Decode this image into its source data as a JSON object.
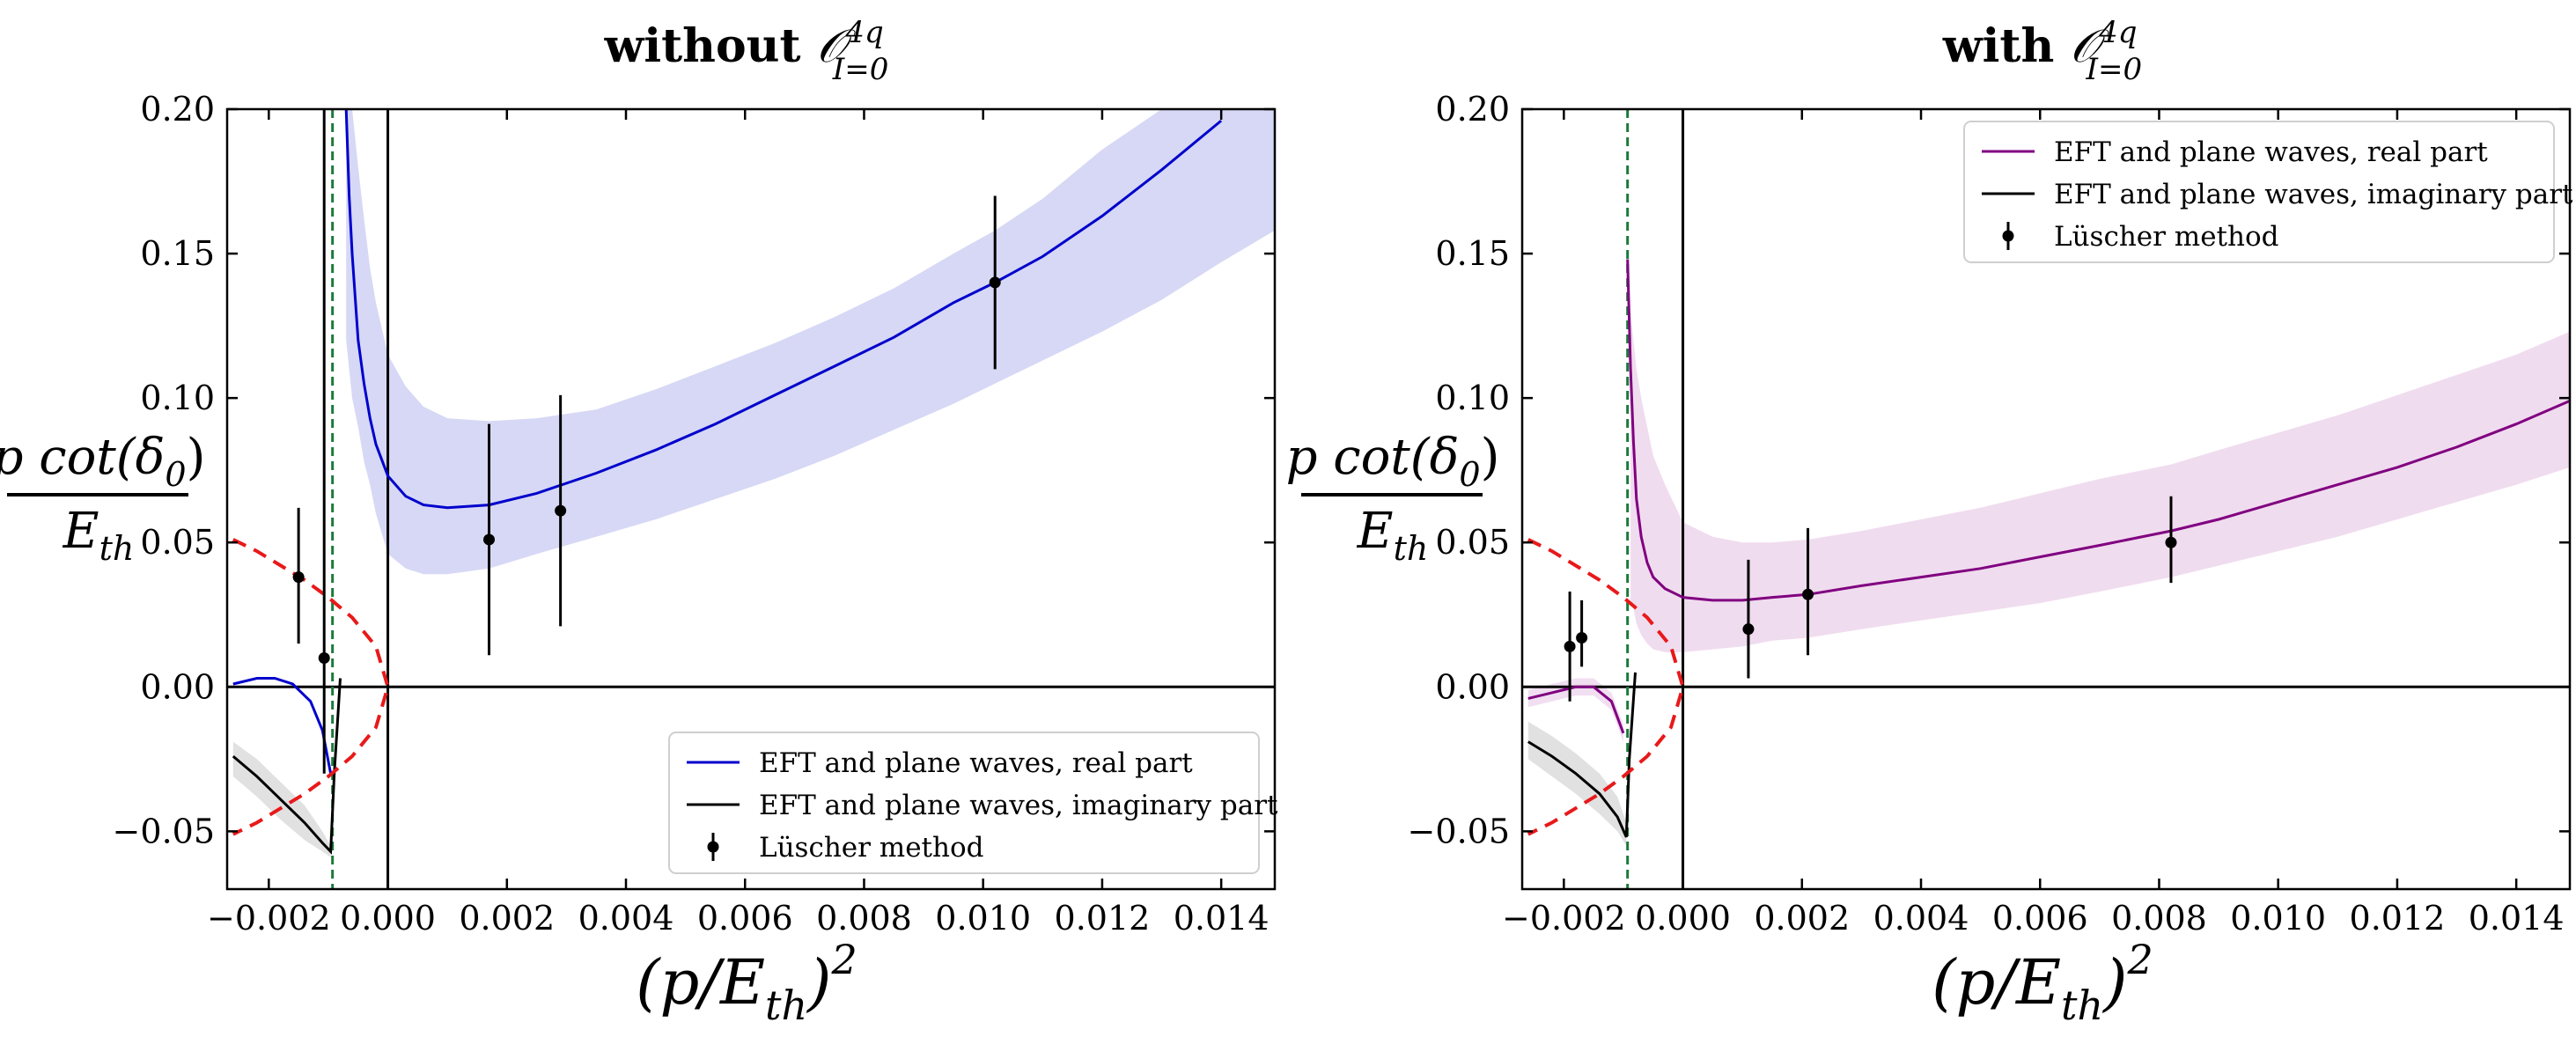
{
  "figure": {
    "ylabel_num": "p cot(δ",
    "ylabel_num_sub": "0",
    "ylabel_num_close": ")",
    "ylabel_den": "E",
    "ylabel_den_sub": "th",
    "xlabel_open": "(p/E",
    "xlabel_sub": "th",
    "xlabel_close": ")",
    "xlabel_sup": "2"
  },
  "chart_data": [
    {
      "type": "line",
      "title_prefix": "without",
      "title_symbol": "𝒪",
      "title_sup": "4q",
      "title_sub": "I=0",
      "xlabel": "(p/E_th)^2",
      "ylabel": "p cot(δ_0) / E_th",
      "xlim": [
        -0.0027,
        0.0149
      ],
      "ylim": [
        -0.07,
        0.2
      ],
      "xticks": [
        "−0.002",
        "0.000",
        "0.002",
        "0.004",
        "0.006",
        "0.008",
        "0.010",
        "0.012",
        "0.014"
      ],
      "xtick_values": [
        -0.002,
        0.0,
        0.002,
        0.004,
        0.006,
        0.008,
        0.01,
        0.012,
        0.014
      ],
      "yticks": [
        "−0.05",
        "0.00",
        "0.05",
        "0.10",
        "0.15",
        "0.20"
      ],
      "ytick_values": [
        -0.05,
        0.0,
        0.05,
        0.1,
        0.15,
        0.2
      ],
      "accent_color": "#0000cc",
      "band_color": "#d6d8f5",
      "legend": {
        "position": "lower-right",
        "entries": [
          {
            "label": "EFT and plane waves, real part",
            "kind": "line",
            "color": "#0000cc"
          },
          {
            "label": "EFT and plane waves, imaginary part",
            "kind": "line",
            "color": "#000000"
          },
          {
            "label": "Lüscher method",
            "kind": "errorbar",
            "color": "#000000"
          }
        ]
      },
      "vlines": [
        {
          "x": 0.0,
          "color": "#000000",
          "dashed": false
        },
        {
          "x": -0.00093,
          "color": "#1b7a3a",
          "dashed": true
        }
      ],
      "series": [
        {
          "name": "EFT and plane waves, real part (left branch)",
          "color": "#0000cc",
          "x": [
            -0.0026,
            -0.0022,
            -0.0019,
            -0.0016,
            -0.0013,
            -0.0011,
            -0.00096
          ],
          "y": [
            0.001,
            0.003,
            0.003,
            0.001,
            -0.005,
            -0.015,
            -0.03
          ]
        },
        {
          "name": "EFT and plane waves, real part (right branch)",
          "color": "#0000cc",
          "x": [
            -0.0007,
            -0.00065,
            -0.0006,
            -0.00055,
            -0.0005,
            -0.0004,
            -0.0003,
            -0.0002,
            0.0,
            0.0003,
            0.0006,
            0.001,
            0.0017,
            0.0025,
            0.0035,
            0.0045,
            0.0055,
            0.0065,
            0.0075,
            0.0085,
            0.0095,
            0.0102,
            0.011,
            0.012,
            0.013,
            0.014
          ],
          "y": [
            0.2,
            0.17,
            0.15,
            0.135,
            0.12,
            0.105,
            0.093,
            0.084,
            0.073,
            0.066,
            0.063,
            0.062,
            0.063,
            0.067,
            0.074,
            0.082,
            0.091,
            0.101,
            0.111,
            0.121,
            0.133,
            0.14,
            0.149,
            0.163,
            0.179,
            0.196
          ]
        },
        {
          "name": "EFT and plane waves, imaginary part",
          "color": "#000000",
          "x": [
            -0.0026,
            -0.0022,
            -0.0018,
            -0.0014,
            -0.0011,
            -0.00096,
            -0.0009,
            -0.0008
          ],
          "y": [
            -0.024,
            -0.031,
            -0.039,
            -0.047,
            -0.054,
            -0.057,
            -0.03,
            0.003
          ]
        },
        {
          "name": "Threshold curve",
          "color": "#e8191a",
          "dashed": true,
          "x": [
            -0.0026,
            -0.0022,
            -0.0018,
            -0.0014,
            -0.001,
            -0.0006,
            -0.0002,
            0.0,
            -0.0002,
            -0.0006,
            -0.001,
            -0.0014,
            -0.0018,
            -0.0022,
            -0.0026
          ],
          "y": [
            0.051,
            0.047,
            0.042,
            0.037,
            0.031,
            0.024,
            0.014,
            0.0,
            -0.014,
            -0.024,
            -0.031,
            -0.037,
            -0.042,
            -0.047,
            -0.051
          ]
        }
      ],
      "bands": [
        {
          "x": [
            -0.0007,
            -0.0006,
            -0.0005,
            -0.0004,
            -0.0003,
            -0.0002,
            0.0,
            0.0003,
            0.0006,
            0.001,
            0.0017,
            0.0025,
            0.0035,
            0.0045,
            0.0055,
            0.0065,
            0.0075,
            0.0085,
            0.0095,
            0.0102,
            0.011,
            0.012,
            0.013,
            0.014,
            0.0149
          ],
          "lower": [
            0.12,
            0.1,
            0.09,
            0.078,
            0.07,
            0.06,
            0.046,
            0.041,
            0.039,
            0.039,
            0.041,
            0.046,
            0.052,
            0.058,
            0.065,
            0.072,
            0.08,
            0.089,
            0.098,
            0.105,
            0.113,
            0.123,
            0.134,
            0.147,
            0.158
          ],
          "upper": [
            0.2,
            0.2,
            0.18,
            0.162,
            0.145,
            0.133,
            0.115,
            0.104,
            0.097,
            0.093,
            0.092,
            0.093,
            0.096,
            0.103,
            0.111,
            0.119,
            0.128,
            0.138,
            0.15,
            0.158,
            0.169,
            0.186,
            0.2,
            0.2,
            0.2
          ]
        },
        {
          "x": [
            -0.0026,
            -0.0022,
            -0.0018,
            -0.0014,
            -0.0011,
            -0.00096
          ],
          "lower": [
            -0.031,
            -0.038,
            -0.046,
            -0.053,
            -0.057,
            -0.059
          ],
          "upper": [
            -0.019,
            -0.025,
            -0.033,
            -0.041,
            -0.05,
            -0.055
          ]
        }
      ],
      "points": [
        {
          "x": -0.0015,
          "y": 0.038,
          "ylow": 0.015,
          "yhigh": 0.062
        },
        {
          "x": -0.00107,
          "y": 0.01,
          "ylow": -0.03,
          "yhigh": 0.2
        },
        {
          "x": 0.0017,
          "y": 0.051,
          "ylow": 0.011,
          "yhigh": 0.091
        },
        {
          "x": 0.0029,
          "y": 0.061,
          "ylow": 0.021,
          "yhigh": 0.101
        },
        {
          "x": 0.0102,
          "y": 0.14,
          "ylow": 0.11,
          "yhigh": 0.17
        }
      ]
    },
    {
      "type": "line",
      "title_prefix": "with",
      "title_symbol": "𝒪",
      "title_sup": "4q",
      "title_sub": "I=0",
      "xlabel": "(p/E_th)^2",
      "ylabel": "p cot(δ_0) / E_th",
      "xlim": [
        -0.0027,
        0.0149
      ],
      "ylim": [
        -0.07,
        0.2
      ],
      "xticks": [
        "−0.002",
        "0.000",
        "0.002",
        "0.004",
        "0.006",
        "0.008",
        "0.010",
        "0.012",
        "0.014"
      ],
      "xtick_values": [
        -0.002,
        0.0,
        0.002,
        0.004,
        0.006,
        0.008,
        0.01,
        0.012,
        0.014
      ],
      "yticks": [
        "−0.05",
        "0.00",
        "0.05",
        "0.10",
        "0.15",
        "0.20"
      ],
      "ytick_values": [
        -0.05,
        0.0,
        0.05,
        0.1,
        0.15,
        0.2
      ],
      "accent_color": "#800080",
      "band_color": "#f0dcef",
      "legend": {
        "position": "upper-right",
        "entries": [
          {
            "label": "EFT and plane waves, real part",
            "kind": "line",
            "color": "#800080"
          },
          {
            "label": "EFT and plane waves, imaginary part",
            "kind": "line",
            "color": "#000000"
          },
          {
            "label": "Lüscher method",
            "kind": "errorbar",
            "color": "#000000"
          }
        ]
      },
      "vlines": [
        {
          "x": 0.0,
          "color": "#000000",
          "dashed": false
        },
        {
          "x": -0.00093,
          "color": "#1b7a3a",
          "dashed": true
        }
      ],
      "series": [
        {
          "name": "EFT and plane waves, real part (left branch)",
          "color": "#800080",
          "x": [
            -0.0026,
            -0.0022,
            -0.0018,
            -0.0015,
            -0.0012,
            -0.001
          ],
          "y": [
            -0.004,
            -0.002,
            0.0,
            0.0,
            -0.005,
            -0.016
          ]
        },
        {
          "name": "EFT and plane waves, real part (right branch)",
          "color": "#800080",
          "x": [
            -0.00093,
            -0.00088,
            -0.00083,
            -0.00078,
            -0.0007,
            -0.0006,
            -0.0005,
            -0.0003,
            0.0,
            0.0005,
            0.001,
            0.0015,
            0.0021,
            0.003,
            0.004,
            0.005,
            0.006,
            0.007,
            0.0082,
            0.009,
            0.01,
            0.011,
            0.012,
            0.013,
            0.014,
            0.0149
          ],
          "y": [
            0.148,
            0.11,
            0.085,
            0.065,
            0.052,
            0.043,
            0.038,
            0.034,
            0.031,
            0.03,
            0.03,
            0.031,
            0.032,
            0.035,
            0.038,
            0.041,
            0.045,
            0.049,
            0.054,
            0.058,
            0.064,
            0.07,
            0.076,
            0.083,
            0.091,
            0.099
          ]
        },
        {
          "name": "EFT and plane waves, imaginary part",
          "color": "#000000",
          "x": [
            -0.0026,
            -0.0022,
            -0.0018,
            -0.0014,
            -0.0011,
            -0.00095,
            -0.0009,
            -0.0008
          ],
          "y": [
            -0.019,
            -0.024,
            -0.03,
            -0.037,
            -0.045,
            -0.052,
            -0.025,
            0.005
          ]
        },
        {
          "name": "Threshold curve",
          "color": "#e8191a",
          "dashed": true,
          "x": [
            -0.0026,
            -0.0022,
            -0.0018,
            -0.0014,
            -0.001,
            -0.0006,
            -0.0002,
            0.0,
            -0.0002,
            -0.0006,
            -0.001,
            -0.0014,
            -0.0018,
            -0.0022,
            -0.0026
          ],
          "y": [
            0.051,
            0.047,
            0.042,
            0.037,
            0.031,
            0.024,
            0.014,
            0.0,
            -0.014,
            -0.024,
            -0.031,
            -0.037,
            -0.042,
            -0.047,
            -0.051
          ]
        }
      ],
      "bands": [
        {
          "x": [
            -0.00088,
            -0.00083,
            -0.00078,
            -0.0007,
            -0.0006,
            -0.0005,
            -0.0003,
            0.0,
            0.0005,
            0.001,
            0.0015,
            0.0021,
            0.003,
            0.004,
            0.005,
            0.006,
            0.007,
            0.0082,
            0.009,
            0.01,
            0.011,
            0.012,
            0.013,
            0.014,
            0.0149
          ],
          "lower": [
            0.03,
            0.027,
            0.022,
            0.018,
            0.015,
            0.013,
            0.012,
            0.012,
            0.013,
            0.014,
            0.016,
            0.017,
            0.02,
            0.023,
            0.026,
            0.029,
            0.033,
            0.038,
            0.042,
            0.047,
            0.052,
            0.058,
            0.064,
            0.07,
            0.076
          ],
          "upper": [
            0.13,
            0.12,
            0.11,
            0.1,
            0.09,
            0.08,
            0.07,
            0.057,
            0.052,
            0.05,
            0.05,
            0.051,
            0.054,
            0.058,
            0.062,
            0.067,
            0.072,
            0.077,
            0.082,
            0.088,
            0.094,
            0.101,
            0.108,
            0.115,
            0.123
          ]
        },
        {
          "x": [
            -0.0026,
            -0.0022,
            -0.0018,
            -0.0014,
            -0.0011,
            -0.00095
          ],
          "lower": [
            -0.025,
            -0.031,
            -0.037,
            -0.044,
            -0.05,
            -0.055
          ],
          "upper": [
            -0.012,
            -0.017,
            -0.023,
            -0.03,
            -0.038,
            -0.047
          ]
        },
        {
          "x": [
            -0.0026,
            -0.0022,
            -0.0018,
            -0.0015,
            -0.0012,
            -0.001
          ],
          "lower": [
            -0.007,
            -0.005,
            -0.003,
            -0.003,
            -0.008,
            -0.019
          ],
          "upper": [
            -0.001,
            0.001,
            0.003,
            0.003,
            -0.002,
            -0.013
          ]
        }
      ],
      "points": [
        {
          "x": -0.0019,
          "y": 0.014,
          "ylow": -0.005,
          "yhigh": 0.033
        },
        {
          "x": -0.0017,
          "y": 0.017,
          "ylow": 0.007,
          "yhigh": 0.03
        },
        {
          "x": 0.0011,
          "y": 0.02,
          "ylow": 0.003,
          "yhigh": 0.044
        },
        {
          "x": 0.0021,
          "y": 0.032,
          "ylow": 0.011,
          "yhigh": 0.055
        },
        {
          "x": 0.0082,
          "y": 0.05,
          "ylow": 0.036,
          "yhigh": 0.066
        }
      ]
    }
  ]
}
